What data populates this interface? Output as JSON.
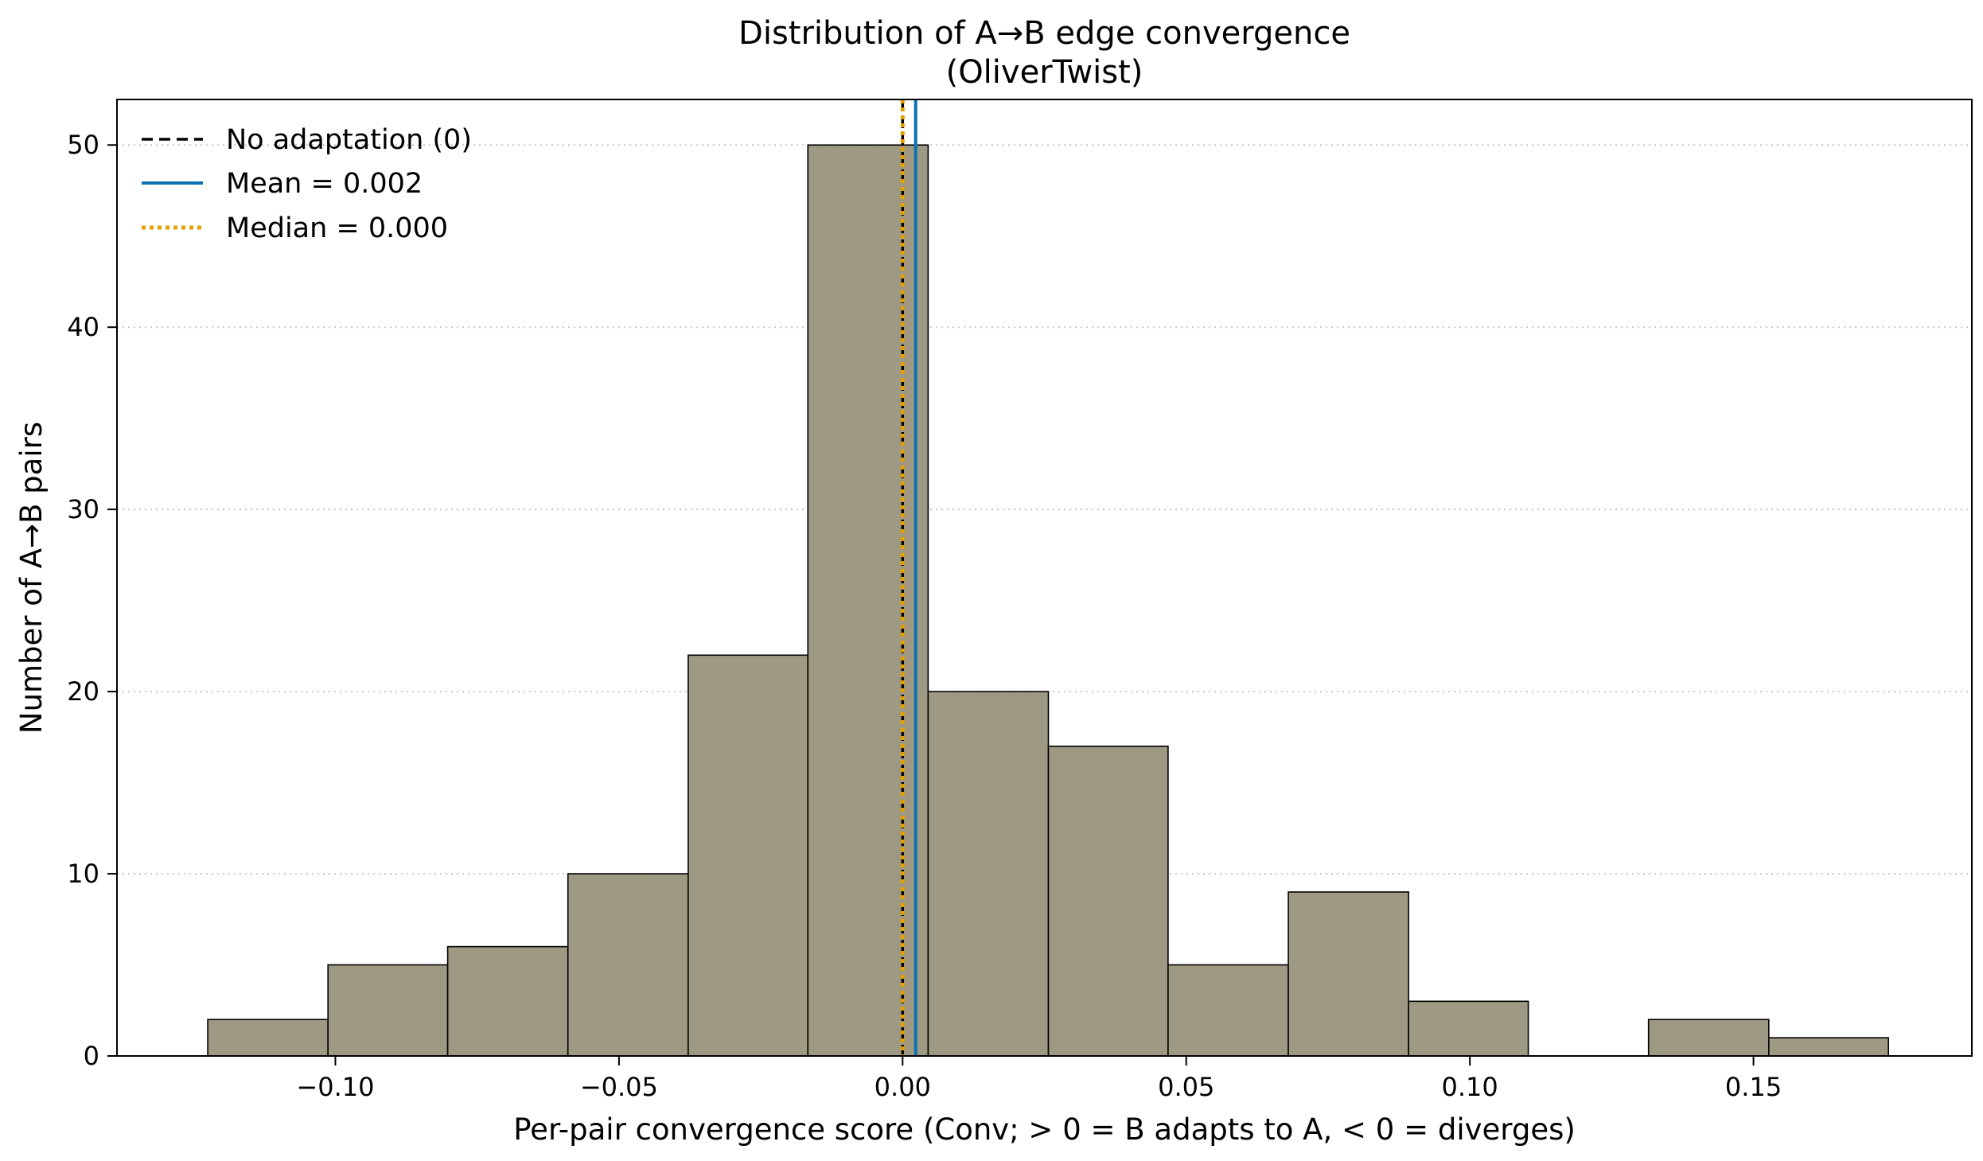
{
  "chart_data": {
    "type": "bar",
    "title_lines": [
      "Distribution of A→B edge convergence",
      "(OliverTwist)"
    ],
    "xlabel": "Per-pair convergence score (Conv; > 0 = B adapts to A, < 0 = diverges)",
    "ylabel": "Number of A→B pairs",
    "xlim": [
      -0.1385,
      0.1885
    ],
    "ylim": [
      0,
      52.5
    ],
    "bin_edges": [
      -0.1225,
      -0.1013,
      -0.0802,
      -0.059,
      -0.0378,
      -0.0167,
      0.0045,
      0.0257,
      0.0468,
      0.068,
      0.0892,
      0.1103,
      0.1315,
      0.1527,
      0.1738
    ],
    "counts": [
      2,
      5,
      6,
      10,
      22,
      50,
      20,
      17,
      5,
      9,
      3,
      0,
      2,
      1
    ],
    "x_ticks": [
      -0.1,
      -0.05,
      0.0,
      0.05,
      0.1,
      0.15
    ],
    "x_tick_labels": [
      "−0.10",
      "−0.05",
      "0.00",
      "0.05",
      "0.10",
      "0.15"
    ],
    "y_ticks": [
      0,
      10,
      20,
      30,
      40,
      50
    ],
    "y_tick_labels": [
      "0",
      "10",
      "20",
      "30",
      "40",
      "50"
    ],
    "grid": "y-dotted",
    "bar_color": "#9e9983",
    "reference_lines": [
      {
        "label": "No adaptation (0)",
        "x": 0.0,
        "color": "#000000",
        "style": "dashed"
      },
      {
        "label": "Mean = 0.002",
        "x": 0.0023,
        "color": "#0b72b3",
        "style": "solid"
      },
      {
        "label": "Median = 0.000",
        "x": 0.0,
        "color": "#e69f00",
        "style": "dotted"
      }
    ],
    "legend_location": "upper-left"
  }
}
